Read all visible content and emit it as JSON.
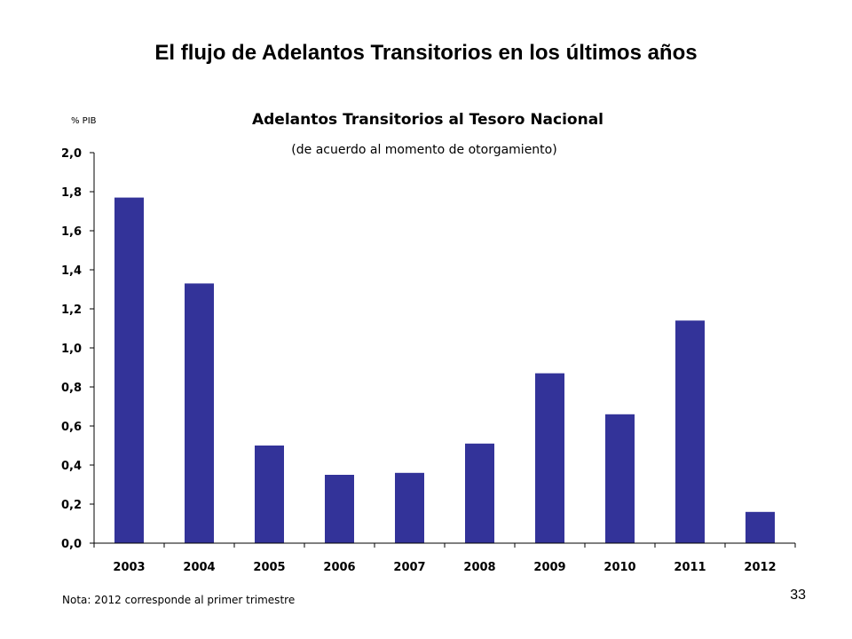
{
  "slide": {
    "title": "El flujo de Adelantos Transitorios en los últimos años",
    "page_number": "33"
  },
  "chart_data": {
    "type": "bar",
    "title": "Adelantos Transitorios al Tesoro Nacional",
    "subtitle": "(de acuerdo al momento de otorgamiento)",
    "unit": "% PIB",
    "categories": [
      "2003",
      "2004",
      "2005",
      "2006",
      "2007",
      "2008",
      "2009",
      "2010",
      "2011",
      "2012"
    ],
    "values": [
      1.77,
      1.33,
      0.5,
      0.35,
      0.36,
      0.51,
      0.87,
      0.66,
      1.14,
      0.16
    ],
    "y_ticks": [
      "0,0",
      "0,2",
      "0,4",
      "0,6",
      "0,8",
      "1,0",
      "1,2",
      "1,4",
      "1,6",
      "1,8",
      "2,0"
    ],
    "ylim": [
      0,
      2.0
    ],
    "grid": false,
    "bar_color": "#333399",
    "note": "Nota: 2012 corresponde al primer trimestre"
  }
}
